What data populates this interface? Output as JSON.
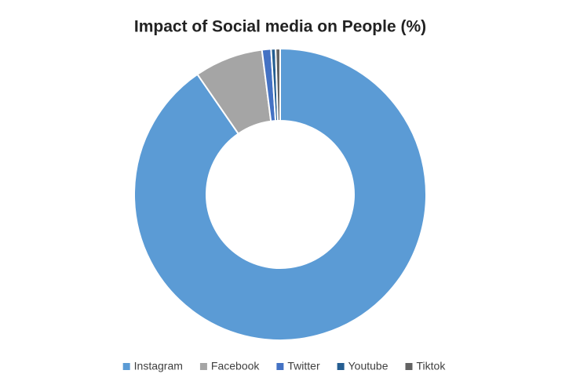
{
  "chart_data": {
    "type": "donut",
    "title": "Impact of Social media on People  (%)",
    "categories": [
      "Instagram",
      "Facebook",
      "Twitter",
      "Youtube",
      "Tiktok"
    ],
    "values": [
      90.4,
      7.6,
      1,
      0.5,
      0.5
    ],
    "colors": [
      "#5b9bd5",
      "#a5a5a5",
      "#4472c4",
      "#255e91",
      "#636363"
    ],
    "legend": "bottom"
  }
}
